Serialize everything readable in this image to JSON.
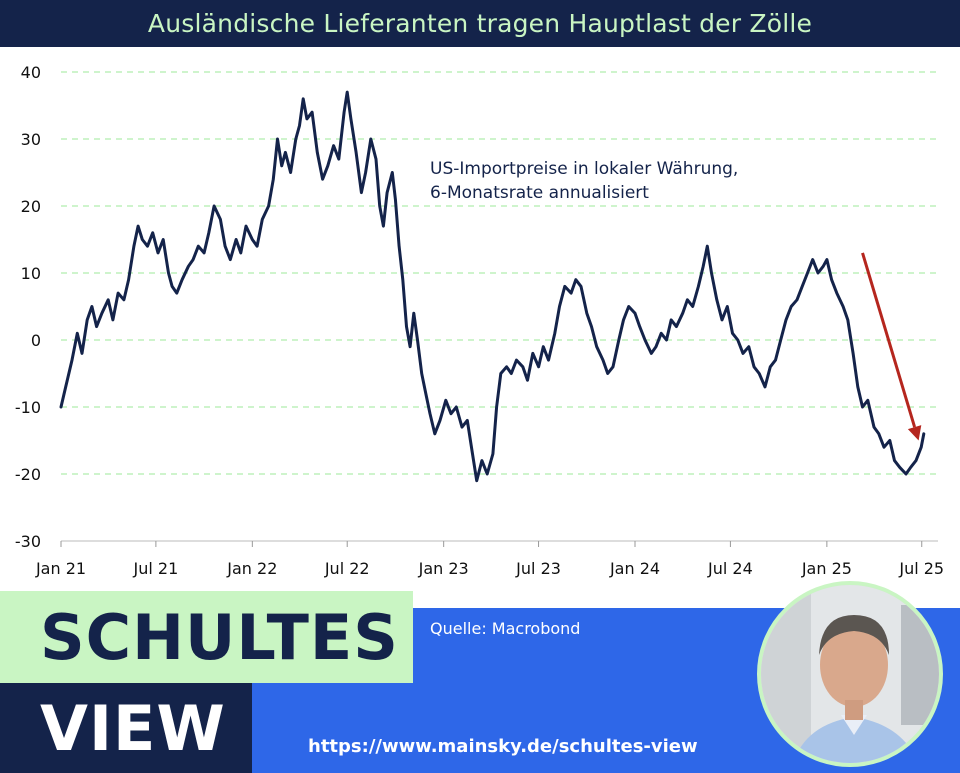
{
  "header": {
    "title": "Ausländische Lieferanten tragen Hauptlast der Zölle"
  },
  "chart_data": {
    "type": "line",
    "title": "Ausländische Lieferanten tragen Hauptlast der Zölle",
    "annotation": [
      "US-Importpreise in lokaler Währung,",
      "6-Monatsrate annualisiert"
    ],
    "ylim": [
      -30,
      40
    ],
    "yticks": [
      -30,
      -20,
      -10,
      0,
      10,
      20,
      30,
      40
    ],
    "xlim": [
      "2021-01",
      "2025-08"
    ],
    "xticks": [
      {
        "date": "2021-01",
        "label": "Jan 21"
      },
      {
        "date": "2021-07",
        "label": "Jul 21"
      },
      {
        "date": "2022-01",
        "label": "Jan 22"
      },
      {
        "date": "2022-07",
        "label": "Jul 22"
      },
      {
        "date": "2023-01",
        "label": "Jan 23"
      },
      {
        "date": "2023-07",
        "label": "Jul 23"
      },
      {
        "date": "2024-01",
        "label": "Jan 24"
      },
      {
        "date": "2024-07",
        "label": "Jul 24"
      },
      {
        "date": "2025-01",
        "label": "Jan 25"
      },
      {
        "date": "2025-07",
        "label": "Jul 25"
      }
    ],
    "grid": true,
    "series": [
      {
        "color": "#14234a",
        "points": [
          [
            "2021-01-01",
            -10
          ],
          [
            "2021-01-10",
            -7
          ],
          [
            "2021-01-22",
            -3
          ],
          [
            "2021-02-01",
            1
          ],
          [
            "2021-02-10",
            -2
          ],
          [
            "2021-02-20",
            3
          ],
          [
            "2021-03-01",
            5
          ],
          [
            "2021-03-10",
            2
          ],
          [
            "2021-03-20",
            4
          ],
          [
            "2021-04-01",
            6
          ],
          [
            "2021-04-10",
            3
          ],
          [
            "2021-04-20",
            7
          ],
          [
            "2021-05-01",
            6
          ],
          [
            "2021-05-10",
            9
          ],
          [
            "2021-05-20",
            14
          ],
          [
            "2021-05-28",
            17
          ],
          [
            "2021-06-05",
            15
          ],
          [
            "2021-06-15",
            14
          ],
          [
            "2021-06-25",
            16
          ],
          [
            "2021-07-05",
            13
          ],
          [
            "2021-07-15",
            15
          ],
          [
            "2021-07-25",
            10
          ],
          [
            "2021-08-01",
            8
          ],
          [
            "2021-08-10",
            7
          ],
          [
            "2021-08-20",
            9
          ],
          [
            "2021-09-01",
            11
          ],
          [
            "2021-09-10",
            12
          ],
          [
            "2021-09-20",
            14
          ],
          [
            "2021-10-01",
            13
          ],
          [
            "2021-10-10",
            16
          ],
          [
            "2021-10-20",
            20
          ],
          [
            "2021-11-01",
            18
          ],
          [
            "2021-11-10",
            14
          ],
          [
            "2021-11-20",
            12
          ],
          [
            "2021-12-01",
            15
          ],
          [
            "2021-12-10",
            13
          ],
          [
            "2021-12-20",
            17
          ],
          [
            "2022-01-01",
            15
          ],
          [
            "2022-01-10",
            14
          ],
          [
            "2022-01-20",
            18
          ],
          [
            "2022-02-01",
            20
          ],
          [
            "2022-02-10",
            24
          ],
          [
            "2022-02-18",
            30
          ],
          [
            "2022-02-26",
            26
          ],
          [
            "2022-03-05",
            28
          ],
          [
            "2022-03-15",
            25
          ],
          [
            "2022-03-25",
            30
          ],
          [
            "2022-04-01",
            32
          ],
          [
            "2022-04-08",
            36
          ],
          [
            "2022-04-15",
            33
          ],
          [
            "2022-04-25",
            34
          ],
          [
            "2022-05-05",
            28
          ],
          [
            "2022-05-15",
            24
          ],
          [
            "2022-05-25",
            26
          ],
          [
            "2022-06-05",
            29
          ],
          [
            "2022-06-15",
            27
          ],
          [
            "2022-06-25",
            34
          ],
          [
            "2022-07-01",
            37
          ],
          [
            "2022-07-08",
            33
          ],
          [
            "2022-07-18",
            28
          ],
          [
            "2022-07-28",
            22
          ],
          [
            "2022-08-05",
            25
          ],
          [
            "2022-08-15",
            30
          ],
          [
            "2022-08-25",
            27
          ],
          [
            "2022-09-01",
            20
          ],
          [
            "2022-09-08",
            17
          ],
          [
            "2022-09-15",
            22
          ],
          [
            "2022-09-25",
            25
          ],
          [
            "2022-10-01",
            21
          ],
          [
            "2022-10-08",
            14
          ],
          [
            "2022-10-15",
            9
          ],
          [
            "2022-10-22",
            2
          ],
          [
            "2022-10-29",
            -1
          ],
          [
            "2022-11-05",
            4
          ],
          [
            "2022-11-12",
            0
          ],
          [
            "2022-11-20",
            -5
          ],
          [
            "2022-11-28",
            -8
          ],
          [
            "2022-12-06",
            -11
          ],
          [
            "2022-12-15",
            -14
          ],
          [
            "2022-12-25",
            -12
          ],
          [
            "2023-01-05",
            -9
          ],
          [
            "2023-01-15",
            -11
          ],
          [
            "2023-01-25",
            -10
          ],
          [
            "2023-02-05",
            -13
          ],
          [
            "2023-02-15",
            -12
          ],
          [
            "2023-02-25",
            -17
          ],
          [
            "2023-03-05",
            -21
          ],
          [
            "2023-03-15",
            -18
          ],
          [
            "2023-03-25",
            -20
          ],
          [
            "2023-04-05",
            -17
          ],
          [
            "2023-04-12",
            -10
          ],
          [
            "2023-04-20",
            -5
          ],
          [
            "2023-05-01",
            -4
          ],
          [
            "2023-05-10",
            -5
          ],
          [
            "2023-05-20",
            -3
          ],
          [
            "2023-06-01",
            -4
          ],
          [
            "2023-06-10",
            -6
          ],
          [
            "2023-06-20",
            -2
          ],
          [
            "2023-07-01",
            -4
          ],
          [
            "2023-07-10",
            -1
          ],
          [
            "2023-07-20",
            -3
          ],
          [
            "2023-08-01",
            1
          ],
          [
            "2023-08-10",
            5
          ],
          [
            "2023-08-20",
            8
          ],
          [
            "2023-09-01",
            7
          ],
          [
            "2023-09-10",
            9
          ],
          [
            "2023-09-20",
            8
          ],
          [
            "2023-10-01",
            4
          ],
          [
            "2023-10-10",
            2
          ],
          [
            "2023-10-20",
            -1
          ],
          [
            "2023-11-01",
            -3
          ],
          [
            "2023-11-10",
            -5
          ],
          [
            "2023-11-20",
            -4
          ],
          [
            "2023-12-01",
            0
          ],
          [
            "2023-12-10",
            3
          ],
          [
            "2023-12-20",
            5
          ],
          [
            "2024-01-01",
            4
          ],
          [
            "2024-01-10",
            2
          ],
          [
            "2024-01-20",
            0
          ],
          [
            "2024-02-01",
            -2
          ],
          [
            "2024-02-10",
            -1
          ],
          [
            "2024-02-20",
            1
          ],
          [
            "2024-03-01",
            0
          ],
          [
            "2024-03-10",
            3
          ],
          [
            "2024-03-20",
            2
          ],
          [
            "2024-04-01",
            4
          ],
          [
            "2024-04-10",
            6
          ],
          [
            "2024-04-20",
            5
          ],
          [
            "2024-05-01",
            8
          ],
          [
            "2024-05-10",
            11
          ],
          [
            "2024-05-18",
            14
          ],
          [
            "2024-05-26",
            10
          ],
          [
            "2024-06-05",
            6
          ],
          [
            "2024-06-15",
            3
          ],
          [
            "2024-06-25",
            5
          ],
          [
            "2024-07-05",
            1
          ],
          [
            "2024-07-15",
            0
          ],
          [
            "2024-07-25",
            -2
          ],
          [
            "2024-08-05",
            -1
          ],
          [
            "2024-08-15",
            -4
          ],
          [
            "2024-08-25",
            -5
          ],
          [
            "2024-09-05",
            -7
          ],
          [
            "2024-09-15",
            -4
          ],
          [
            "2024-09-25",
            -3
          ],
          [
            "2024-10-05",
            0
          ],
          [
            "2024-10-15",
            3
          ],
          [
            "2024-10-25",
            5
          ],
          [
            "2024-11-05",
            6
          ],
          [
            "2024-11-15",
            8
          ],
          [
            "2024-11-25",
            10
          ],
          [
            "2024-12-05",
            12
          ],
          [
            "2024-12-15",
            10
          ],
          [
            "2024-12-25",
            11
          ],
          [
            "2025-01-01",
            12
          ],
          [
            "2025-01-10",
            9
          ],
          [
            "2025-01-20",
            7
          ],
          [
            "2025-02-01",
            5
          ],
          [
            "2025-02-10",
            3
          ],
          [
            "2025-02-20",
            -2
          ],
          [
            "2025-03-01",
            -7
          ],
          [
            "2025-03-10",
            -10
          ],
          [
            "2025-03-20",
            -9
          ],
          [
            "2025-04-01",
            -13
          ],
          [
            "2025-04-10",
            -14
          ],
          [
            "2025-04-20",
            -16
          ],
          [
            "2025-05-01",
            -15
          ],
          [
            "2025-05-10",
            -18
          ],
          [
            "2025-05-20",
            -19
          ],
          [
            "2025-06-01",
            -20
          ],
          [
            "2025-06-10",
            -19
          ],
          [
            "2025-06-20",
            -18
          ],
          [
            "2025-06-30",
            -16
          ],
          [
            "2025-07-05",
            -14
          ]
        ]
      }
    ],
    "arrow": {
      "color": "#b5261e",
      "from": [
        "2025-03-10",
        13
      ],
      "to": [
        "2025-06-25",
        -15
      ]
    }
  },
  "brand": {
    "line1": "SCHULTES",
    "line2": "VIEW"
  },
  "footer": {
    "source": "Quelle: Macrobond",
    "url": "https://www.mainsky.de/schultes-view"
  },
  "colors": {
    "navy": "#14234a",
    "mint": "#c9f5c3",
    "blue": "#2e67e8",
    "grid": "#9ee89a",
    "arrow": "#b5261e"
  }
}
